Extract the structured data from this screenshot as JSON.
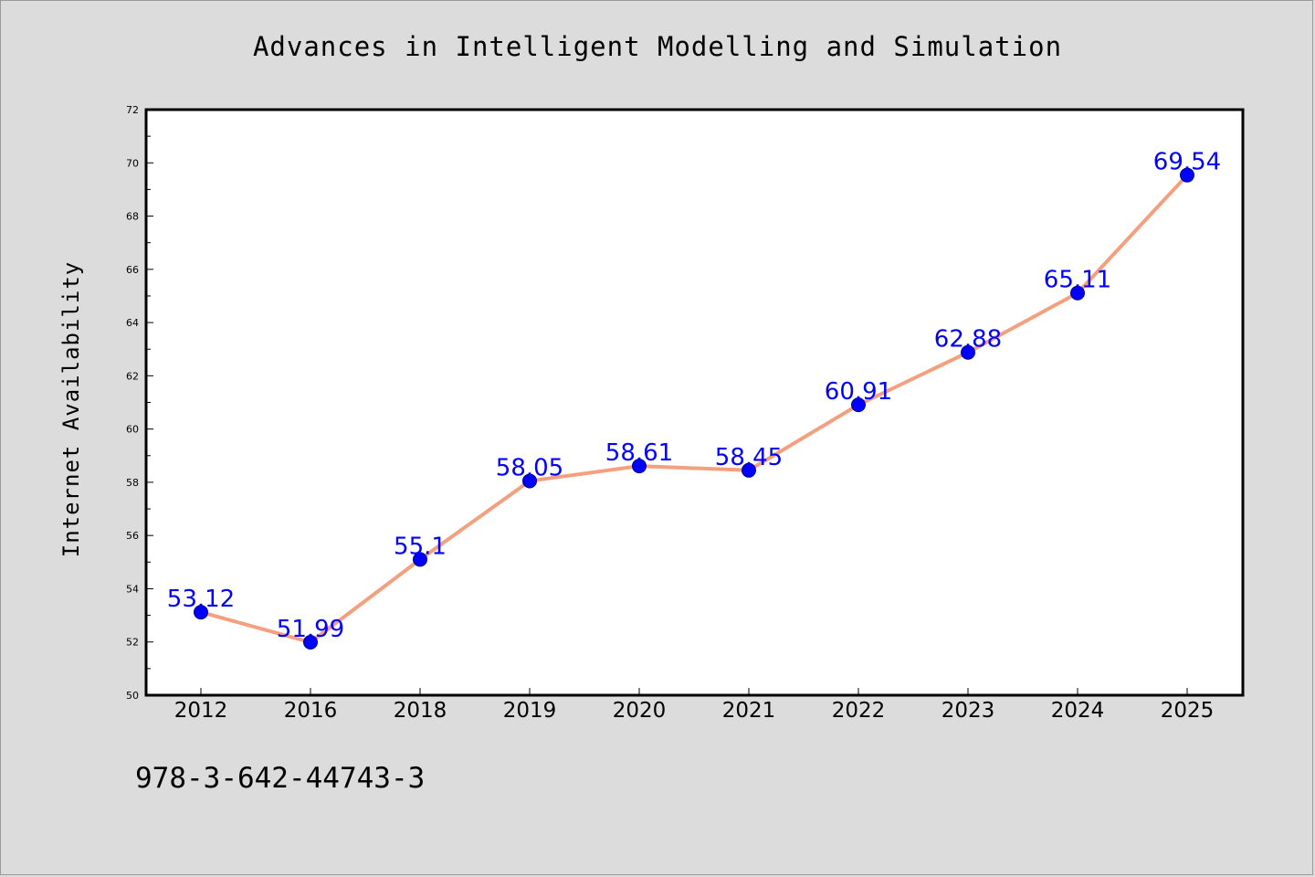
{
  "chart_data": {
    "type": "line",
    "title": "Advances in Intelligent Modelling and Simulation",
    "xlabel": "",
    "ylabel": "Internet Availability",
    "categories": [
      "2012",
      "2016",
      "2018",
      "2019",
      "2020",
      "2021",
      "2022",
      "2023",
      "2024",
      "2025"
    ],
    "series": [
      {
        "values": [
          53.12,
          51.99,
          55.1,
          58.05,
          58.61,
          58.45,
          60.91,
          62.88,
          65.11,
          69.54
        ]
      }
    ],
    "data_labels": [
      "53.12",
      "51.99",
      "55.1",
      "58.05",
      "58.61",
      "58.45",
      "60.91",
      "62.88",
      "65.11",
      "69.54"
    ],
    "ylim": [
      50,
      72
    ],
    "yticks": [
      "50",
      "52",
      "54",
      "56",
      "58",
      "60",
      "62",
      "64",
      "66",
      "68",
      "70",
      "72"
    ],
    "grid": false,
    "legend": "none",
    "colors": {
      "line": "#f4a07e",
      "marker": "#0000ff",
      "data_label": "#0000ff",
      "background": "#dcdcdc",
      "plot_background": "#ffffff"
    }
  },
  "footer": {
    "text": "978-3-642-44743-3"
  }
}
